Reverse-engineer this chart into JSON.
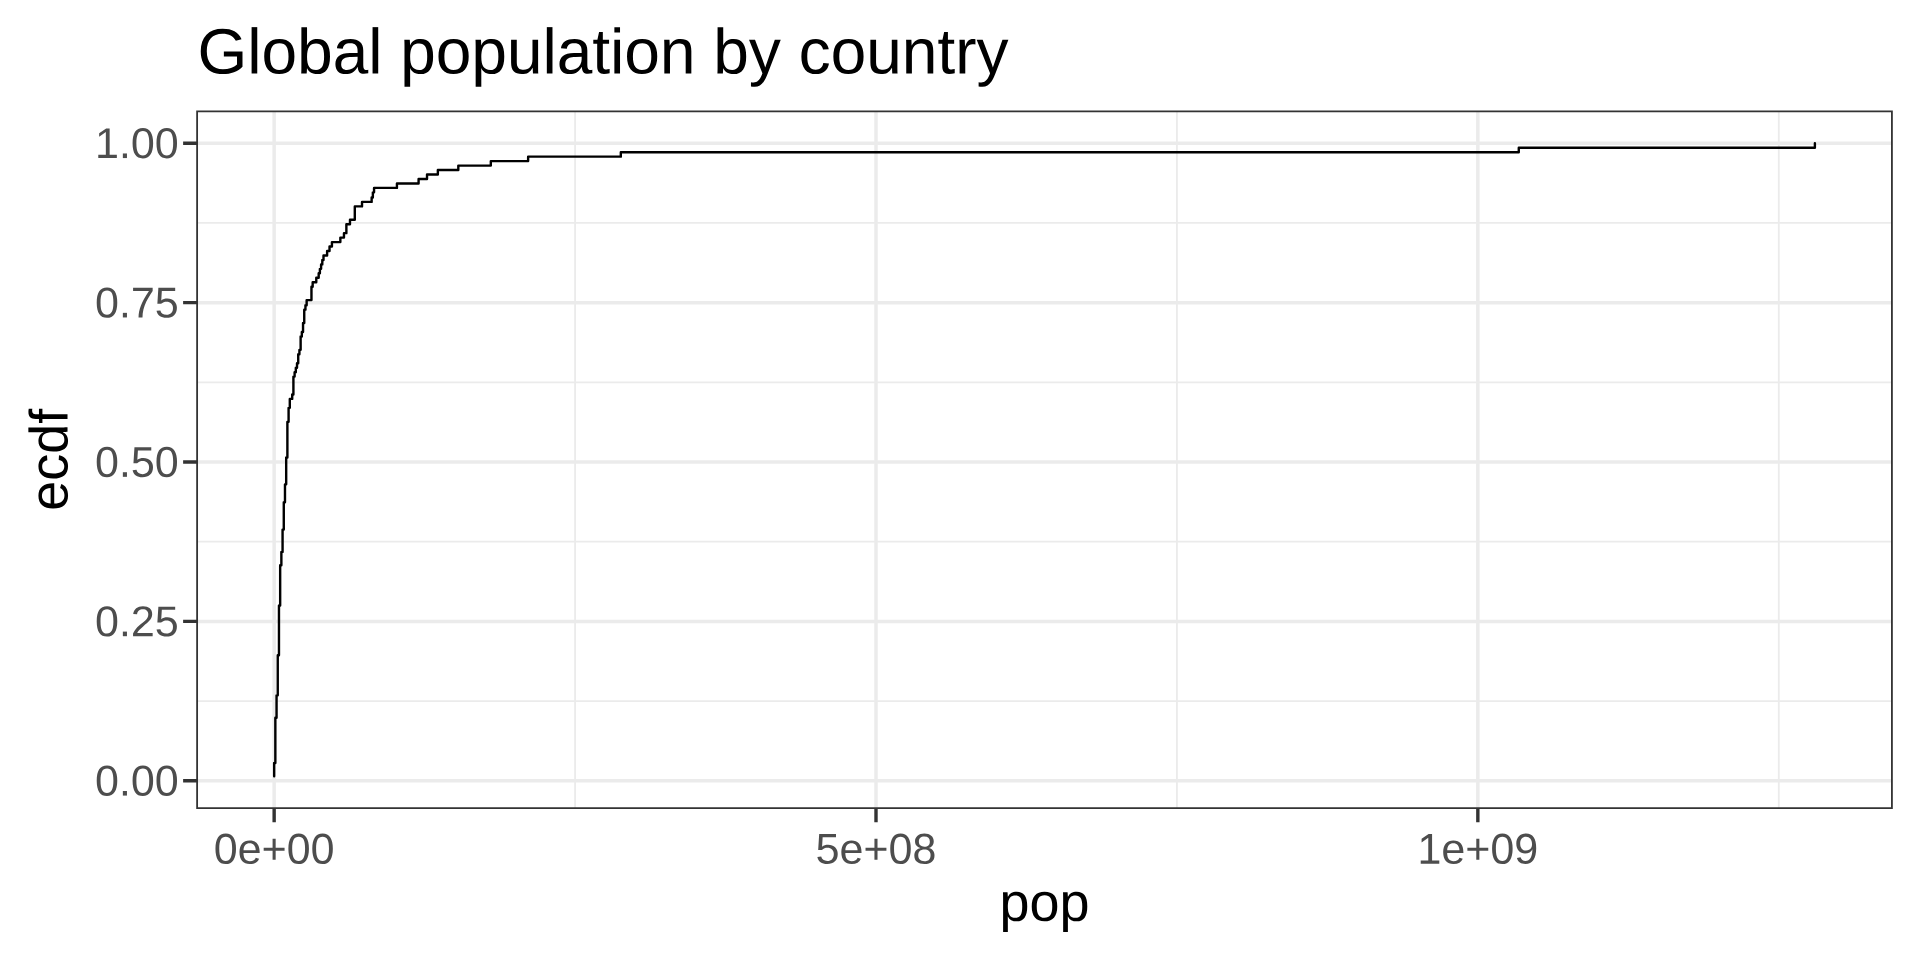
{
  "chart_data": {
    "type": "step",
    "title": "Global population by country",
    "xlabel": "pop",
    "ylabel": "ecdf",
    "color": "#000000",
    "x": [
      0,
      0,
      0,
      0,
      1000000,
      1000000,
      1000000,
      1000000,
      1000000,
      1000000,
      1000000,
      1000000,
      1000000,
      1000000,
      2000000,
      2000000,
      2000000,
      2000000,
      2000000,
      3000000,
      3000000,
      3000000,
      3000000,
      3000000,
      3000000,
      3000000,
      3000000,
      3000000,
      4000000,
      4000000,
      4000000,
      4000000,
      4000000,
      4000000,
      4000000,
      4000000,
      4000000,
      4000000,
      4000000,
      5000000,
      5000000,
      5000000,
      5000000,
      5000000,
      5000000,
      5000000,
      5000000,
      5000000,
      6000000,
      6000000,
      6000000,
      7000000,
      7000000,
      7000000,
      7000000,
      7000000,
      8000000,
      8000000,
      8000000,
      8000000,
      8000000,
      8000000,
      9000000,
      9000000,
      9000000,
      9000000,
      10000000,
      10000000,
      10000000,
      10000000,
      10000000,
      10000000,
      11000000,
      11000000,
      11000000,
      11000000,
      11000000,
      11000000,
      11000000,
      11000000,
      12000000,
      12000000,
      12000000,
      13000000,
      13000000,
      15000000,
      16000000,
      16000000,
      16000000,
      16000000,
      17000000,
      18000000,
      19000000,
      20000000,
      20000000,
      21000000,
      22000000,
      22000000,
      22000000,
      23000000,
      24000000,
      24000000,
      25000000,
      25000000,
      25000000,
      26000000,
      27000000,
      31000000,
      31000000,
      31000000,
      32000000,
      35000000,
      37000000,
      38000000,
      39000000,
      40000000,
      41000000,
      44000000,
      46000000,
      48000000,
      55000000,
      58000000,
      60000000,
      60000000,
      63000000,
      67000000,
      67000000,
      67000000,
      73000000,
      81000000,
      82000000,
      83000000,
      102000000,
      120000000,
      127000000,
      136000000,
      153000000,
      180000000,
      211000000,
      288000000,
      1034000000,
      1280000000
    ],
    "values": [
      0.007,
      0.014,
      0.021,
      0.028,
      0.035,
      0.042,
      0.049,
      0.056,
      0.063,
      0.07,
      0.077,
      0.085,
      0.092,
      0.099,
      0.106,
      0.113,
      0.12,
      0.127,
      0.134,
      0.141,
      0.148,
      0.155,
      0.162,
      0.169,
      0.176,
      0.183,
      0.19,
      0.197,
      0.204,
      0.211,
      0.218,
      0.225,
      0.232,
      0.239,
      0.246,
      0.254,
      0.261,
      0.268,
      0.275,
      0.282,
      0.289,
      0.296,
      0.303,
      0.31,
      0.317,
      0.324,
      0.331,
      0.338,
      0.345,
      0.352,
      0.359,
      0.366,
      0.373,
      0.38,
      0.387,
      0.394,
      0.401,
      0.408,
      0.415,
      0.423,
      0.43,
      0.437,
      0.444,
      0.451,
      0.458,
      0.465,
      0.472,
      0.479,
      0.486,
      0.493,
      0.5,
      0.507,
      0.514,
      0.521,
      0.528,
      0.535,
      0.542,
      0.549,
      0.556,
      0.563,
      0.57,
      0.577,
      0.585,
      0.592,
      0.599,
      0.606,
      0.613,
      0.62,
      0.627,
      0.634,
      0.641,
      0.648,
      0.655,
      0.662,
      0.669,
      0.676,
      0.683,
      0.69,
      0.697,
      0.704,
      0.711,
      0.718,
      0.725,
      0.732,
      0.739,
      0.746,
      0.754,
      0.761,
      0.768,
      0.775,
      0.782,
      0.789,
      0.796,
      0.803,
      0.81,
      0.817,
      0.824,
      0.831,
      0.838,
      0.845,
      0.852,
      0.859,
      0.866,
      0.873,
      0.88,
      0.887,
      0.894,
      0.901,
      0.908,
      0.915,
      0.923,
      0.93,
      0.937,
      0.944,
      0.951,
      0.958,
      0.965,
      0.972,
      0.979,
      0.986,
      0.993,
      1.0
    ],
    "xlim": [
      -64000000,
      1344000000
    ],
    "ylim": [
      -0.043,
      1.05
    ],
    "xticks": [
      {
        "value": 0,
        "label": "0e+00"
      },
      {
        "value": 500000000,
        "label": "5e+08"
      },
      {
        "value": 1000000000,
        "label": "1e+09"
      }
    ],
    "yticks": [
      {
        "value": 0,
        "label": "0.00"
      },
      {
        "value": 0.25,
        "label": "0.25"
      },
      {
        "value": 0.5,
        "label": "0.50"
      },
      {
        "value": 0.75,
        "label": "0.75"
      },
      {
        "value": 1,
        "label": "1.00"
      }
    ],
    "grid": true
  }
}
